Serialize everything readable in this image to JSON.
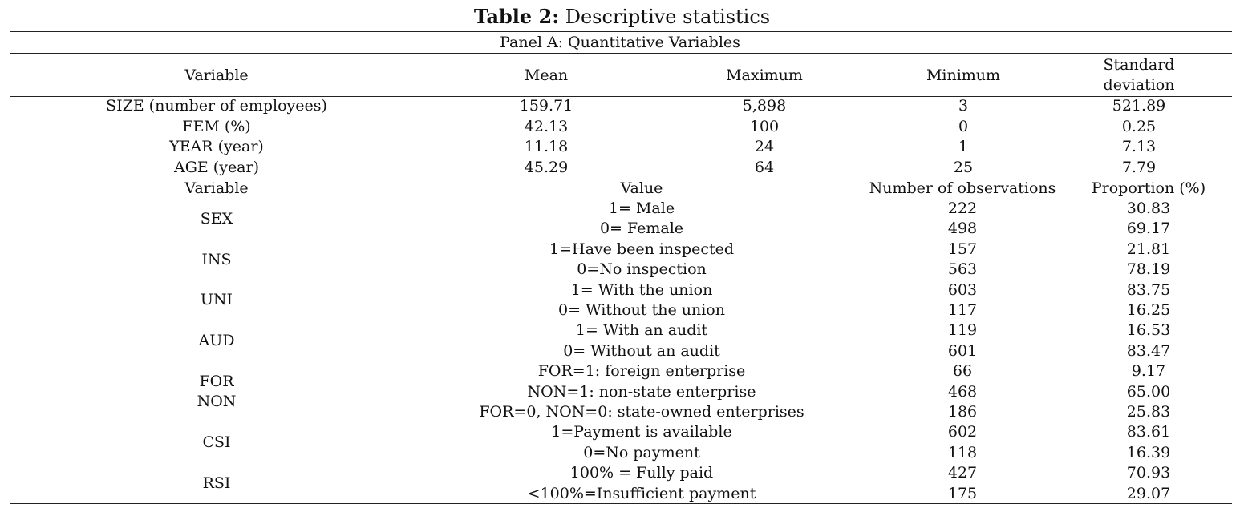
{
  "title": {
    "bold": "Table 2:",
    "rest": " Descriptive statistics"
  },
  "panel_a": "Panel A: Quantitative Variables",
  "headers_a": {
    "variable": "Variable",
    "mean": "Mean",
    "maximum": "Maximum",
    "minimum": "Minimum",
    "sd_line1": "Standard",
    "sd_line2": "deviation"
  },
  "quant_rows": [
    {
      "variable": "SIZE (number of employees)",
      "mean": "159.71",
      "maximum": "5,898",
      "minimum": "3",
      "sd": "521.89"
    },
    {
      "variable": "FEM (%)",
      "mean": "42.13",
      "maximum": "100",
      "minimum": "0",
      "sd": "0.25"
    },
    {
      "variable": "YEAR (year)",
      "mean": "11.18",
      "maximum": "24",
      "minimum": "1",
      "sd": "7.13"
    },
    {
      "variable": "AGE (year)",
      "mean": "45.29",
      "maximum": "64",
      "minimum": "25",
      "sd": "7.79"
    }
  ],
  "headers_b": {
    "variable": "Variable",
    "value": "Value",
    "obs": "Number of observations",
    "prop": "Proportion (%)"
  },
  "qual_vars": [
    "SEX",
    "INS",
    "UNI",
    "AUD",
    "FOR",
    "NON",
    "CSI",
    "RSI"
  ],
  "qual_rows": [
    {
      "value": "1= Male",
      "obs": "222",
      "prop": "30.83"
    },
    {
      "value": "0= Female",
      "obs": "498",
      "prop": "69.17"
    },
    {
      "value": "1=Have been inspected",
      "obs": "157",
      "prop": "21.81"
    },
    {
      "value": "0=No inspection",
      "obs": "563",
      "prop": "78.19"
    },
    {
      "value": "1= With the union",
      "obs": "603",
      "prop": "83.75"
    },
    {
      "value": "0= Without the union",
      "obs": "117",
      "prop": "16.25"
    },
    {
      "value": "1= With an audit",
      "obs": "119",
      "prop": "16.53"
    },
    {
      "value": "0= Without an audit",
      "obs": "601",
      "prop": "83.47"
    },
    {
      "value": "FOR=1: foreign enterprise",
      "obs": "66",
      "prop": "9.17"
    },
    {
      "value": "NON=1: non-state enterprise",
      "obs": "468",
      "prop": "65.00"
    },
    {
      "value": "FOR=0, NON=0: state-owned enterprises",
      "obs": "186",
      "prop": "25.83"
    },
    {
      "value": "1=Payment is available",
      "obs": "602",
      "prop": "83.61"
    },
    {
      "value": "0=No payment",
      "obs": "118",
      "prop": "16.39"
    },
    {
      "value": "100% = Fully paid",
      "obs": "427",
      "prop": "70.93"
    },
    {
      "value": "<100%=Insufficient payment",
      "obs": "175",
      "prop": "29.07"
    }
  ]
}
